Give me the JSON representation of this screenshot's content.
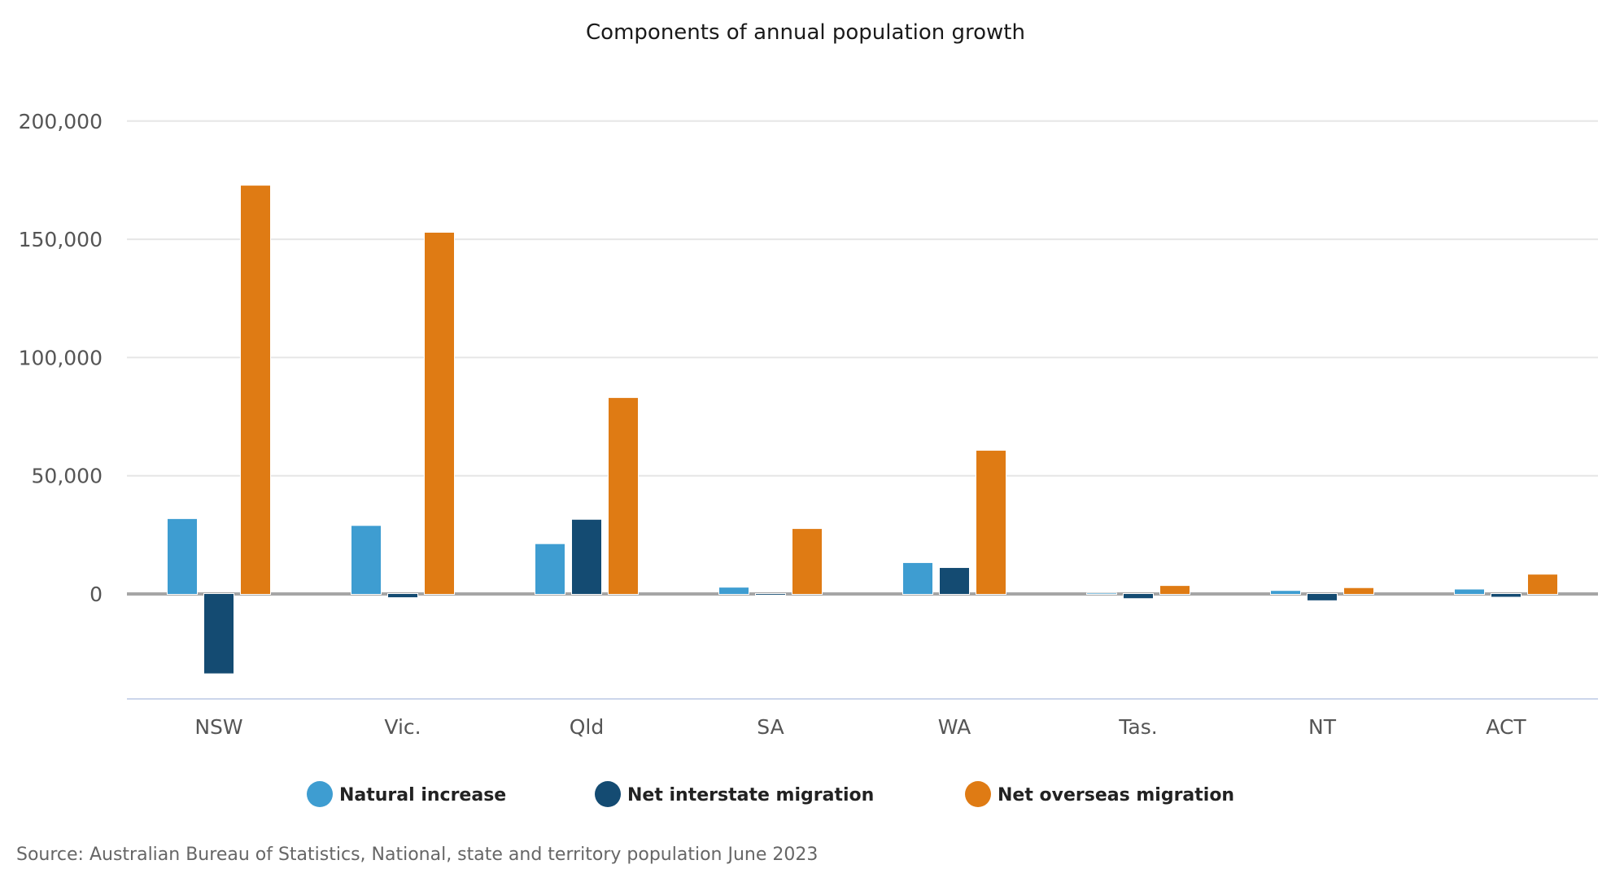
{
  "chart_data": {
    "type": "bar",
    "title": "Components of annual population growth",
    "xlabel": "",
    "ylabel": "",
    "categories": [
      "NSW",
      "Vic.",
      "Qld",
      "SA",
      "WA",
      "Tas.",
      "NT",
      "ACT"
    ],
    "series": [
      {
        "name": "Natural increase",
        "color": "#3e9dd1",
        "values": [
          31700,
          28800,
          21100,
          2700,
          13100,
          200,
          1300,
          1900
        ]
      },
      {
        "name": "Net interstate migration",
        "color": "#144b72",
        "values": [
          -33600,
          -1400,
          31400,
          -300,
          11000,
          -1800,
          -2700,
          -1200
        ]
      },
      {
        "name": "Net overseas migration",
        "color": "#df7b14",
        "values": [
          172700,
          152800,
          82900,
          27500,
          60600,
          3400,
          2500,
          8200
        ]
      }
    ],
    "ylim": [
      -45000,
      200000
    ],
    "yticks": [
      0,
      50000,
      100000,
      150000,
      200000
    ],
    "ytick_labels": [
      "0",
      "50,000",
      "100,000",
      "150,000",
      "200,000"
    ],
    "grid": true,
    "legend": "bottom-center",
    "source": "Source: Australian Bureau of Statistics, National, state and territory population June 2023"
  }
}
